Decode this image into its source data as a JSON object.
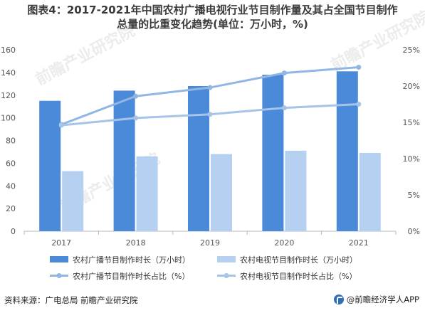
{
  "title_line1": "图表4：2017-2021年中国农村广播电视行业节目制作量及其占全国节目制作",
  "title_line2": "总量的比重变化趋势(单位：万小时，%)",
  "source": "资料来源：广电总局 前瞻产业研究院",
  "brand": "@前瞻经济学人APP",
  "watermarks": [
    "前瞻产业研究院",
    "前瞻产业研究院",
    "前瞻产业研究院"
  ],
  "colors": {
    "series_dark": "#4a8ad8",
    "series_light": "#b5d0f0",
    "line1": "#90b6e4",
    "line2": "#a6c4ea",
    "axis": "#999999",
    "text": "#555555"
  },
  "chart_data": {
    "type": "bar",
    "categories": [
      "2017",
      "2018",
      "2019",
      "2020",
      "2021"
    ],
    "left_axis": {
      "min": 0,
      "max": 160,
      "ticks": [
        0,
        20,
        40,
        60,
        80,
        100,
        120,
        140,
        160
      ]
    },
    "right_axis": {
      "min": 0,
      "max": 25,
      "ticks": [
        "0%",
        "5%",
        "10%",
        "15%",
        "20%",
        "25%"
      ],
      "tick_values": [
        0,
        5,
        10,
        15,
        20,
        25
      ]
    },
    "series": [
      {
        "name": "农村广播节目制作时长（万小时）",
        "kind": "bar",
        "axis": "left",
        "values": [
          115,
          124,
          128,
          138,
          141
        ]
      },
      {
        "name": "农村电视节目制作时长（万小时）",
        "kind": "bar",
        "axis": "left",
        "values": [
          53,
          66,
          68,
          71,
          69
        ]
      },
      {
        "name": "农村广播节目制作时长占比（%）",
        "kind": "line",
        "axis": "right",
        "values": [
          14.7,
          18.6,
          19.8,
          21.8,
          22.6
        ]
      },
      {
        "name": "农村电视节目制作时长占比（%）",
        "kind": "line",
        "axis": "right",
        "values": [
          14.6,
          15.6,
          16.1,
          17.0,
          17.5
        ]
      }
    ]
  }
}
